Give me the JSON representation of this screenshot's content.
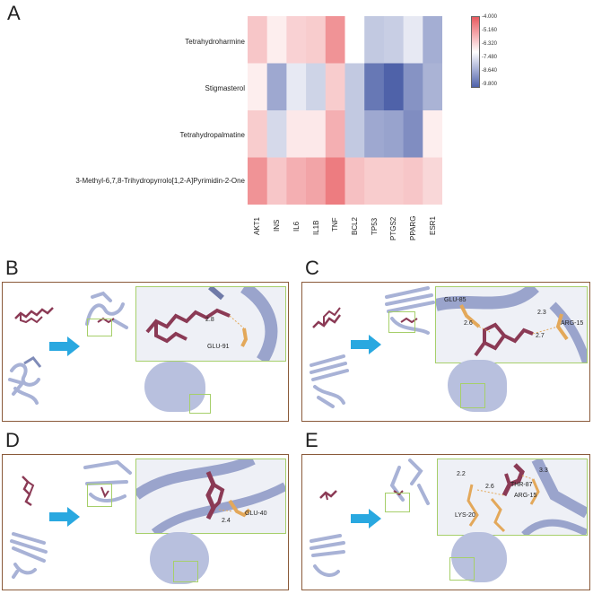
{
  "panels": {
    "A": "A",
    "B": "B",
    "C": "C",
    "D": "D",
    "E": "E"
  },
  "heatmap": {
    "rows": [
      "Tetrahydroharmine",
      "Stigmasterol",
      "Tetrahydropalmatine",
      "3-Methyl-6,7,8-Trihydropyrrolo[1,2-A]Pyrimidin-2-One"
    ],
    "columns": [
      "AKT1",
      "INS",
      "IL6",
      "IL1B",
      "TNF",
      "BCL2",
      "TP53",
      "PTGS2",
      "PPARG",
      "ESR1"
    ],
    "colorbar_ticks": [
      "-4.000",
      "-5.160",
      "-6.320",
      "-7.480",
      "-8.640",
      "-9.800"
    ]
  },
  "chart_data": {
    "type": "heatmap",
    "rows": [
      "Tetrahydroharmine",
      "Stigmasterol",
      "Tetrahydropalmatine",
      "3-Methyl-6,7,8-Trihydropyrrolo[1,2-A]Pyrimidin-2-One"
    ],
    "columns": [
      "AKT1",
      "INS",
      "IL6",
      "IL1B",
      "TNF",
      "BCL2",
      "TP53",
      "PTGS2",
      "PPARG",
      "ESR1"
    ],
    "values": [
      [
        -5.9,
        -6.6,
        -6.1,
        -6.0,
        -5.0,
        -6.9,
        -7.9,
        -7.8,
        -7.3,
        -8.4
      ],
      [
        -6.6,
        -8.5,
        -7.3,
        -7.7,
        -6.0,
        -7.9,
        -9.4,
        -9.8,
        -8.9,
        -8.3
      ],
      [
        -6.0,
        -7.6,
        -6.5,
        -6.5,
        -5.5,
        -7.9,
        -8.5,
        -8.6,
        -9.0,
        -6.6
      ],
      [
        -5.0,
        -5.9,
        -5.5,
        -5.3,
        -4.6,
        -5.8,
        -6.0,
        -6.0,
        -5.9,
        -6.2
      ]
    ],
    "colorbar": {
      "min": -9.8,
      "max": -4.0,
      "low_color": "#4f62a9",
      "mid_color": "#ffffff",
      "high_color": "#e85a5f"
    }
  },
  "docking": {
    "B": {
      "residues": [
        "GLU-91"
      ],
      "distances": [
        "2.8"
      ]
    },
    "C": {
      "residues": [
        "GLU-85",
        "ARG-15"
      ],
      "distances": [
        "2.6",
        "2.3",
        "2.7"
      ]
    },
    "D": {
      "residues": [
        "GLU-40"
      ],
      "distances": [
        "2.4"
      ]
    },
    "E": {
      "residues": [
        "THR-87",
        "ARG-15",
        "LYS-20"
      ],
      "distances": [
        "2.2",
        "3.3",
        "2.6"
      ]
    }
  },
  "colors": {
    "ligand": "#8b3a55",
    "protein": "#a8b2d6",
    "residue": "#e3a85a",
    "arrow": "#29a8e0",
    "zoom_border": "#a6cf6a",
    "panel_border": "#8a5a3a"
  }
}
